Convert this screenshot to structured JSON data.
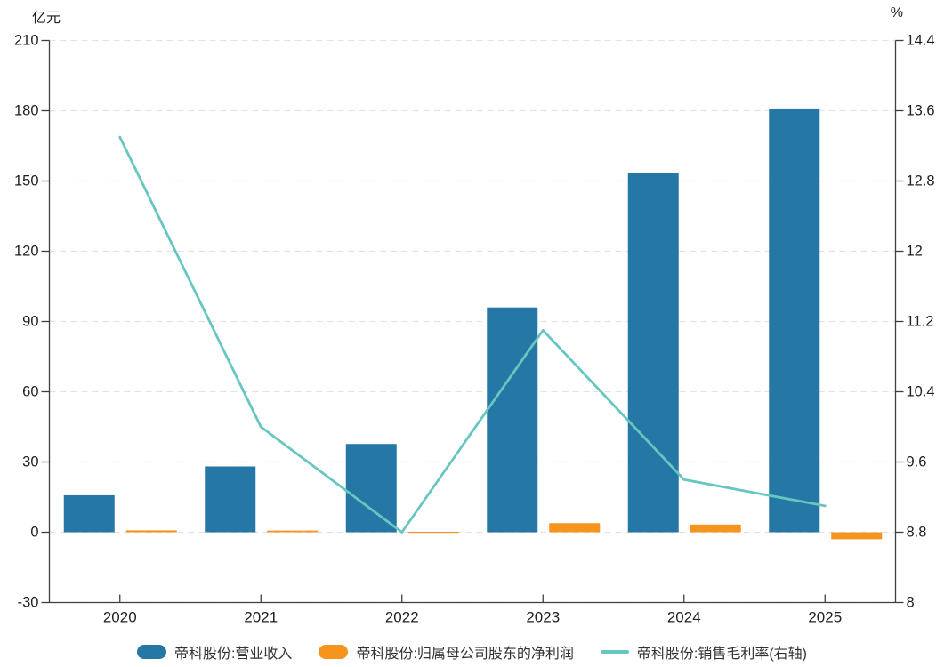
{
  "chart_data": {
    "type": "combo",
    "categories": [
      "2020",
      "2021",
      "2022",
      "2023",
      "2024",
      "2025"
    ],
    "series": [
      {
        "name": "帝科股份:营业收入",
        "type": "bar",
        "axis": "left",
        "color": "#2577a5",
        "values": [
          15.8,
          28.1,
          37.7,
          96.0,
          153.3,
          180.6
        ]
      },
      {
        "name": "帝科股份:归属母公司股东的净利润",
        "type": "bar",
        "axis": "left",
        "color": "#f7941e",
        "values": [
          0.8,
          0.7,
          0.2,
          3.9,
          3.3,
          -3.0
        ]
      },
      {
        "name": "帝科股份:销售毛利率(右轴)",
        "type": "line",
        "axis": "right",
        "color": "#68c6c1",
        "values": [
          13.3,
          10.0,
          8.8,
          11.1,
          9.4,
          9.1
        ]
      }
    ],
    "left_axis": {
      "label": "亿元",
      "min": -30,
      "max": 210,
      "step": 30,
      "ticks": [
        "210",
        "180",
        "150",
        "120",
        "90",
        "60",
        "30",
        "0",
        "-30"
      ]
    },
    "right_axis": {
      "label": "%",
      "min": 8,
      "max": 14.4,
      "step": 0.8,
      "ticks": [
        "14.4",
        "13.6",
        "12.8",
        "12",
        "11.2",
        "10.4",
        "9.6",
        "8.8",
        "8"
      ]
    },
    "grid": true,
    "legend_position": "bottom",
    "colors": {
      "grid": "#e3e3e3",
      "axis": "#3f3f3f",
      "text": "#1f1f1f"
    }
  }
}
